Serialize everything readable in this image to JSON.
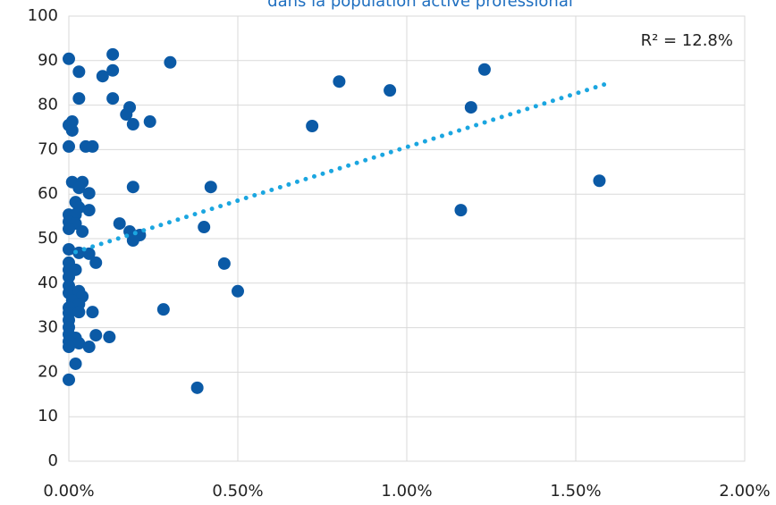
{
  "chart_data": {
    "type": "scatter",
    "title": "dans la population active professional",
    "annotation": "R² = 12.8%",
    "color": "#0b5aa6",
    "trendline": {
      "color": "#1ba6e0",
      "x": [
        0.02,
        1.6
      ],
      "y": [
        47,
        85
      ]
    },
    "x": [
      0,
      0,
      0.01,
      0.01,
      0,
      0.03,
      0.03,
      0.13,
      0.13,
      0.1,
      0.13,
      0.3,
      0.18,
      0.17,
      0.24,
      0.19,
      0.05,
      0.07,
      0.01,
      0.04,
      0.03,
      0.06,
      0.02,
      0.03,
      0.06,
      0,
      0.02,
      0,
      0.02,
      0,
      0.04,
      0.19,
      0.15,
      0.18,
      0.21,
      0.19,
      0.4,
      0.42,
      0,
      0.03,
      0.06,
      0,
      0.08,
      0.46,
      0,
      0.02,
      0,
      0,
      0.5,
      0,
      0.03,
      0.04,
      0.01,
      0.03,
      0,
      0.28,
      0,
      0.03,
      0.07,
      0,
      0,
      0,
      0.02,
      0.08,
      0.12,
      0,
      0.03,
      0,
      0.06,
      0.02,
      0,
      0.38,
      0.72,
      0.8,
      0.95,
      1.16,
      1.19,
      1.23,
      1.57
    ],
    "values": [
      90.4,
      75.5,
      76.3,
      74.3,
      70.7,
      87.5,
      81.5,
      91.4,
      87.8,
      86.5,
      81.5,
      89.6,
      79.5,
      77.9,
      76.3,
      75.7,
      70.7,
      70.7,
      62.7,
      62.7,
      61.4,
      60.2,
      58.2,
      57,
      56.4,
      55.4,
      55.4,
      53.8,
      53.4,
      52.2,
      51.6,
      61.6,
      53.4,
      51.6,
      50.8,
      49.6,
      52.6,
      61.6,
      47.6,
      46.8,
      46.6,
      44.6,
      44.6,
      44.4,
      43,
      43,
      41.4,
      39.4,
      38.2,
      37.8,
      38.2,
      37,
      36.1,
      35.3,
      34.5,
      34.1,
      33.3,
      33.5,
      33.5,
      31.7,
      30.1,
      28.5,
      27.7,
      28.3,
      27.9,
      26.9,
      26.5,
      25.7,
      25.7,
      21.9,
      18.3,
      16.5,
      75.3,
      85.3,
      83.3,
      56.4,
      79.5,
      88,
      63
    ],
    "xlim": [
      0,
      2
    ],
    "xticks": [
      {
        "value": 0,
        "label": "0.00%"
      },
      {
        "value": 0.5,
        "label": "0.50%"
      },
      {
        "value": 1,
        "label": "1.00%"
      },
      {
        "value": 1.5,
        "label": "1.50%"
      },
      {
        "value": 2,
        "label": "2.00%"
      }
    ],
    "ylim": [
      0,
      100
    ],
    "yticks": [
      0,
      10,
      20,
      30,
      40,
      50,
      60,
      70,
      80,
      90,
      100
    ],
    "grid": true
  }
}
